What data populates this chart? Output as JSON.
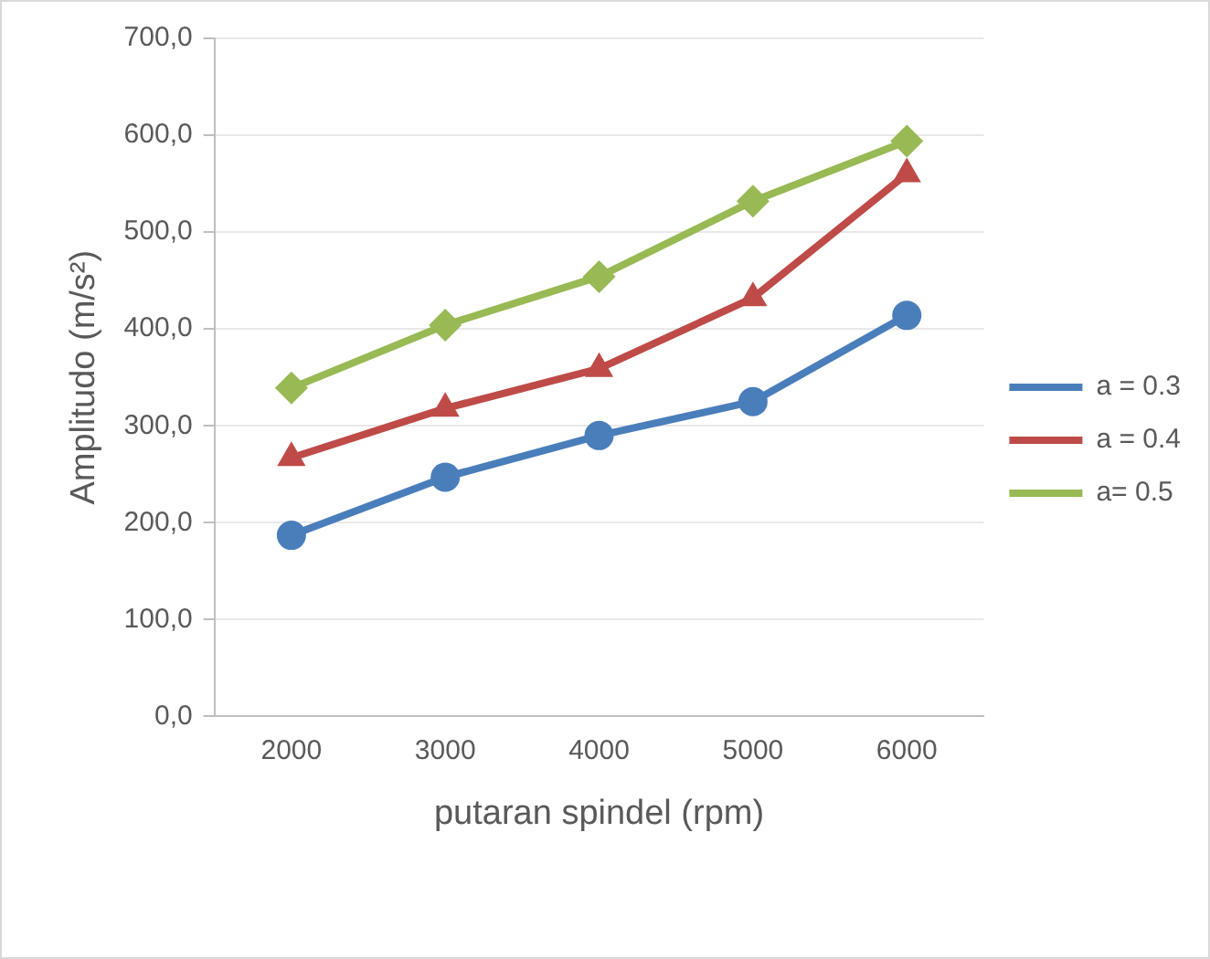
{
  "chart_data": {
    "type": "line",
    "xlabel": "putaran spindel (rpm)",
    "ylabel": "Amplitudo (m/s²)",
    "categories": [
      "2000",
      "3000",
      "4000",
      "5000",
      "6000"
    ],
    "series": [
      {
        "name": "a = 0.3",
        "color": "#4a7ebb",
        "marker": "circle",
        "values": [
          187,
          247,
          290,
          325,
          414
        ]
      },
      {
        "name": "a = 0.4",
        "color": "#be4b48",
        "marker": "triangle",
        "values": [
          267,
          318,
          359,
          432,
          560
        ]
      },
      {
        "name": "a= 0.5",
        "color": "#98b954",
        "marker": "diamond",
        "values": [
          339,
          404,
          454,
          532,
          594
        ]
      }
    ],
    "ylim": [
      0,
      700
    ],
    "yticks": [
      {
        "value": 0,
        "label": "0,0"
      },
      {
        "value": 100,
        "label": "100,0"
      },
      {
        "value": 200,
        "label": "200,0"
      },
      {
        "value": 300,
        "label": "300,0"
      },
      {
        "value": 400,
        "label": "400,0"
      },
      {
        "value": 500,
        "label": "500,0"
      },
      {
        "value": 600,
        "label": "600,0"
      },
      {
        "value": 700,
        "label": "700,0"
      }
    ],
    "grid": "y",
    "legend": "right"
  }
}
